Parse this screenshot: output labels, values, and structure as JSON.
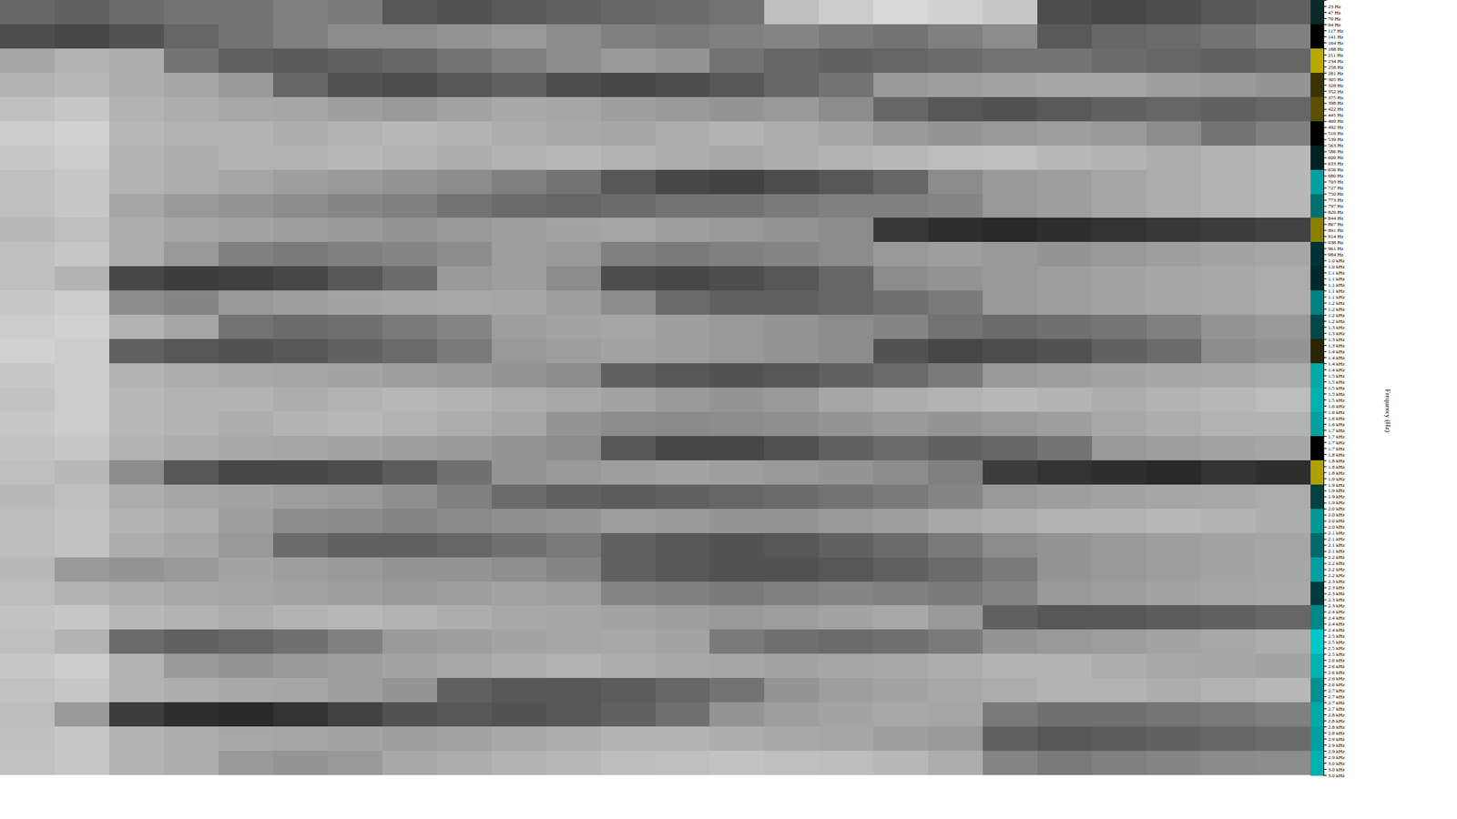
{
  "chart_data": {
    "type": "heatmap",
    "y_label": "Frequency (Hz)",
    "ylim": [
      0,
      3000
    ],
    "tick_labels": "y",
    "zlim": [
      0,
      100
    ],
    "yticks": [
      {
        "value": 23.4,
        "label": "23 Hz"
      },
      {
        "value": 46.9,
        "label": "47 Hz"
      },
      {
        "value": 70.3,
        "label": "70 Hz"
      },
      {
        "value": 93.8,
        "label": "94 Hz"
      },
      {
        "value": 117.2,
        "label": "117 Hz"
      },
      {
        "value": 140.6,
        "label": "141 Hz"
      },
      {
        "value": 164.1,
        "label": "164 Hz"
      },
      {
        "value": 187.5,
        "label": "188 Hz"
      },
      {
        "value": 210.9,
        "label": "211 Hz"
      },
      {
        "value": 234.4,
        "label": "234 Hz"
      },
      {
        "value": 257.8,
        "label": "258 Hz"
      },
      {
        "value": 281.3,
        "label": "281 Hz"
      },
      {
        "value": 304.7,
        "label": "305 Hz"
      },
      {
        "value": 328.1,
        "label": "328 Hz"
      },
      {
        "value": 351.6,
        "label": "352 Hz"
      },
      {
        "value": 375,
        "label": "375 Hz"
      },
      {
        "value": 398.4,
        "label": "398 Hz"
      },
      {
        "value": 421.9,
        "label": "422 Hz"
      },
      {
        "value": 445.3,
        "label": "445 Hz"
      },
      {
        "value": 468.8,
        "label": "469 Hz"
      },
      {
        "value": 492.2,
        "label": "492 Hz"
      },
      {
        "value": 515.6,
        "label": "516 Hz"
      },
      {
        "value": 539.1,
        "label": "539 Hz"
      },
      {
        "value": 562.5,
        "label": "563 Hz"
      },
      {
        "value": 585.9,
        "label": "586 Hz"
      },
      {
        "value": 609.4,
        "label": "609 Hz"
      },
      {
        "value": 632.8,
        "label": "633 Hz"
      },
      {
        "value": 656.3,
        "label": "656 Hz"
      },
      {
        "value": 679.7,
        "label": "680 Hz"
      },
      {
        "value": 703.1,
        "label": "703 Hz"
      },
      {
        "value": 726.6,
        "label": "727 Hz"
      },
      {
        "value": 750,
        "label": "750 Hz"
      },
      {
        "value": 773.4,
        "label": "773 Hz"
      },
      {
        "value": 796.9,
        "label": "797 Hz"
      },
      {
        "value": 820.3,
        "label": "820 Hz"
      },
      {
        "value": 843.8,
        "label": "844 Hz"
      },
      {
        "value": 867.2,
        "label": "867 Hz"
      },
      {
        "value": 890.6,
        "label": "891 Hz"
      },
      {
        "value": 914.1,
        "label": "914 Hz"
      },
      {
        "value": 937.5,
        "label": "938 Hz"
      },
      {
        "value": 960.9,
        "label": "961 Hz"
      },
      {
        "value": 984.4,
        "label": "984 Hz"
      },
      {
        "value": 1007.8,
        "label": "1.0 kHz"
      },
      {
        "value": 1031.3,
        "label": "1.0 kHz"
      },
      {
        "value": 1054.7,
        "label": "1.1 kHz"
      },
      {
        "value": 1078.1,
        "label": "1.1 kHz"
      },
      {
        "value": 1101.6,
        "label": "1.1 kHz"
      },
      {
        "value": 1125,
        "label": "1.1 kHz"
      },
      {
        "value": 1148.4,
        "label": "1.1 kHz"
      },
      {
        "value": 1171.9,
        "label": "1.2 kHz"
      },
      {
        "value": 1195.3,
        "label": "1.2 kHz"
      },
      {
        "value": 1218.8,
        "label": "1.2 kHz"
      },
      {
        "value": 1242.2,
        "label": "1.2 kHz"
      },
      {
        "value": 1265.6,
        "label": "1.3 kHz"
      },
      {
        "value": 1289.1,
        "label": "1.3 kHz"
      },
      {
        "value": 1312.5,
        "label": "1.3 kHz"
      },
      {
        "value": 1335.9,
        "label": "1.3 kHz"
      },
      {
        "value": 1359.4,
        "label": "1.4 kHz"
      },
      {
        "value": 1382.8,
        "label": "1.4 kHz"
      },
      {
        "value": 1406.3,
        "label": "1.4 kHz"
      },
      {
        "value": 1429.7,
        "label": "1.4 kHz"
      },
      {
        "value": 1453.1,
        "label": "1.5 kHz"
      },
      {
        "value": 1476.6,
        "label": "1.5 kHz"
      },
      {
        "value": 1500,
        "label": "1.5 kHz"
      },
      {
        "value": 1523.4,
        "label": "1.5 kHz"
      },
      {
        "value": 1546.9,
        "label": "1.5 kHz"
      },
      {
        "value": 1570.3,
        "label": "1.6 kHz"
      },
      {
        "value": 1593.8,
        "label": "1.6 kHz"
      },
      {
        "value": 1617.2,
        "label": "1.6 kHz"
      },
      {
        "value": 1640.6,
        "label": "1.6 kHz"
      },
      {
        "value": 1664.1,
        "label": "1.7 kHz"
      },
      {
        "value": 1687.5,
        "label": "1.7 kHz"
      },
      {
        "value": 1710.9,
        "label": "1.7 kHz"
      },
      {
        "value": 1734.4,
        "label": "1.7 kHz"
      },
      {
        "value": 1757.8,
        "label": "1.8 kHz"
      },
      {
        "value": 1781.3,
        "label": "1.8 kHz"
      },
      {
        "value": 1804.7,
        "label": "1.8 kHz"
      },
      {
        "value": 1828.1,
        "label": "1.8 kHz"
      },
      {
        "value": 1851.6,
        "label": "1.9 kHz"
      },
      {
        "value": 1875,
        "label": "1.9 kHz"
      },
      {
        "value": 1898.4,
        "label": "1.9 kHz"
      },
      {
        "value": 1921.9,
        "label": "1.9 kHz"
      },
      {
        "value": 1945.3,
        "label": "1.9 kHz"
      },
      {
        "value": 1968.8,
        "label": "2.0 kHz"
      },
      {
        "value": 1992.2,
        "label": "2.0 kHz"
      },
      {
        "value": 2015.6,
        "label": "2.0 kHz"
      },
      {
        "value": 2039.1,
        "label": "2.0 kHz"
      },
      {
        "value": 2062.5,
        "label": "2.1 kHz"
      },
      {
        "value": 2085.9,
        "label": "2.1 kHz"
      },
      {
        "value": 2109.4,
        "label": "2.1 kHz"
      },
      {
        "value": 2132.8,
        "label": "2.1 kHz"
      },
      {
        "value": 2156.3,
        "label": "2.2 kHz"
      },
      {
        "value": 2179.7,
        "label": "2.2 kHz"
      },
      {
        "value": 2203.1,
        "label": "2.2 kHz"
      },
      {
        "value": 2226.6,
        "label": "2.2 kHz"
      },
      {
        "value": 2250,
        "label": "2.3 kHz"
      },
      {
        "value": 2273.4,
        "label": "2.3 kHz"
      },
      {
        "value": 2296.9,
        "label": "2.3 kHz"
      },
      {
        "value": 2320.3,
        "label": "2.3 kHz"
      },
      {
        "value": 2343.8,
        "label": "2.3 kHz"
      },
      {
        "value": 2367.2,
        "label": "2.4 kHz"
      },
      {
        "value": 2390.6,
        "label": "2.4 kHz"
      },
      {
        "value": 2414.1,
        "label": "2.4 kHz"
      },
      {
        "value": 2437.5,
        "label": "2.4 kHz"
      },
      {
        "value": 2460.9,
        "label": "2.5 kHz"
      },
      {
        "value": 2484.4,
        "label": "2.5 kHz"
      },
      {
        "value": 2507.8,
        "label": "2.5 kHz"
      },
      {
        "value": 2531.3,
        "label": "2.5 kHz"
      },
      {
        "value": 2554.7,
        "label": "2.6 kHz"
      },
      {
        "value": 2578.1,
        "label": "2.6 kHz"
      },
      {
        "value": 2601.6,
        "label": "2.6 kHz"
      },
      {
        "value": 2625,
        "label": "2.6 kHz"
      },
      {
        "value": 2648.4,
        "label": "2.6 kHz"
      },
      {
        "value": 2671.9,
        "label": "2.7 kHz"
      },
      {
        "value": 2695.3,
        "label": "2.7 kHz"
      },
      {
        "value": 2718.8,
        "label": "2.7 kHz"
      },
      {
        "value": 2742.2,
        "label": "2.7 kHz"
      },
      {
        "value": 2765.6,
        "label": "2.8 kHz"
      },
      {
        "value": 2789.1,
        "label": "2.8 kHz"
      },
      {
        "value": 2812.5,
        "label": "2.8 kHz"
      },
      {
        "value": 2835.9,
        "label": "2.8 kHz"
      },
      {
        "value": 2859.4,
        "label": "2.9 kHz"
      },
      {
        "value": 2882.8,
        "label": "2.9 kHz"
      },
      {
        "value": 2906.3,
        "label": "2.9 kHz"
      },
      {
        "value": 2929.7,
        "label": "2.9 kHz"
      },
      {
        "value": 2953.1,
        "label": "3.0 kHz"
      },
      {
        "value": 2976.6,
        "label": "3.0 kHz"
      },
      {
        "value": 3000,
        "label": "3.0 kHz"
      }
    ],
    "cells": [
      [
        60,
        62,
        58,
        55,
        55,
        50,
        52,
        66,
        68,
        65,
        62,
        60,
        58,
        55,
        25,
        20,
        15,
        18,
        22,
        70,
        72,
        70,
        66,
        62
      ],
      [
        70,
        72,
        68,
        60,
        55,
        50,
        45,
        45,
        42,
        40,
        45,
        50,
        52,
        50,
        48,
        52,
        55,
        50,
        45,
        65,
        60,
        58,
        55,
        50
      ],
      [
        35,
        30,
        32,
        55,
        62,
        65,
        62,
        60,
        55,
        50,
        45,
        40,
        42,
        55,
        60,
        62,
        60,
        58,
        55,
        55,
        58,
        60,
        62,
        60
      ],
      [
        30,
        28,
        32,
        35,
        40,
        60,
        68,
        70,
        66,
        62,
        70,
        72,
        70,
        66,
        60,
        55,
        40,
        38,
        36,
        35,
        35,
        38,
        40,
        42
      ],
      [
        25,
        22,
        30,
        32,
        34,
        35,
        38,
        40,
        36,
        34,
        35,
        38,
        40,
        42,
        40,
        45,
        60,
        66,
        68,
        65,
        62,
        60,
        62,
        60
      ],
      [
        20,
        18,
        28,
        30,
        30,
        32,
        30,
        28,
        30,
        32,
        34,
        35,
        32,
        30,
        32,
        35,
        40,
        42,
        40,
        38,
        40,
        45,
        55,
        50
      ],
      [
        22,
        20,
        30,
        32,
        30,
        30,
        28,
        30,
        32,
        30,
        28,
        30,
        32,
        34,
        32,
        30,
        28,
        26,
        25,
        28,
        30,
        32,
        30,
        28
      ],
      [
        25,
        22,
        30,
        32,
        35,
        38,
        40,
        42,
        45,
        50,
        55,
        66,
        72,
        74,
        70,
        66,
        60,
        45,
        40,
        38,
        35,
        32,
        30,
        28
      ],
      [
        25,
        22,
        35,
        40,
        42,
        45,
        48,
        50,
        55,
        58,
        60,
        58,
        55,
        55,
        52,
        50,
        50,
        48,
        40,
        38,
        35,
        32,
        30,
        28
      ],
      [
        28,
        25,
        32,
        35,
        36,
        38,
        40,
        42,
        40,
        38,
        36,
        35,
        38,
        40,
        42,
        45,
        78,
        82,
        84,
        82,
        80,
        78,
        76,
        74
      ],
      [
        25,
        22,
        32,
        40,
        50,
        52,
        50,
        48,
        45,
        38,
        40,
        50,
        52,
        50,
        48,
        45,
        40,
        38,
        40,
        42,
        40,
        38,
        36,
        35
      ],
      [
        25,
        30,
        72,
        76,
        75,
        72,
        66,
        58,
        40,
        38,
        45,
        70,
        72,
        70,
        66,
        60,
        45,
        42,
        40,
        38,
        36,
        35,
        34,
        33
      ],
      [
        22,
        20,
        45,
        48,
        40,
        38,
        36,
        35,
        34,
        35,
        38,
        45,
        58,
        62,
        62,
        60,
        56,
        52,
        40,
        38,
        36,
        35,
        34,
        32
      ],
      [
        20,
        18,
        30,
        35,
        55,
        58,
        56,
        52,
        48,
        38,
        36,
        35,
        38,
        40,
        42,
        45,
        48,
        55,
        58,
        56,
        54,
        50,
        42,
        40
      ],
      [
        18,
        20,
        62,
        66,
        68,
        66,
        62,
        58,
        52,
        40,
        38,
        36,
        38,
        40,
        42,
        45,
        68,
        72,
        70,
        68,
        62,
        58,
        45,
        42
      ],
      [
        22,
        20,
        30,
        32,
        34,
        35,
        36,
        38,
        40,
        42,
        45,
        62,
        66,
        68,
        66,
        62,
        58,
        52,
        40,
        38,
        36,
        35,
        34,
        33
      ],
      [
        24,
        20,
        28,
        30,
        30,
        32,
        30,
        28,
        30,
        32,
        34,
        36,
        40,
        42,
        40,
        35,
        32,
        30,
        28,
        30,
        32,
        30,
        28,
        26
      ],
      [
        22,
        20,
        28,
        30,
        32,
        30,
        28,
        30,
        32,
        35,
        42,
        45,
        46,
        45,
        44,
        42,
        40,
        42,
        40,
        38,
        34,
        32,
        30,
        30
      ],
      [
        24,
        22,
        30,
        32,
        34,
        35,
        36,
        38,
        40,
        42,
        45,
        66,
        72,
        72,
        68,
        62,
        58,
        62,
        60,
        55,
        40,
        38,
        36,
        35
      ],
      [
        25,
        28,
        45,
        66,
        72,
        72,
        70,
        64,
        56,
        42,
        40,
        38,
        36,
        38,
        40,
        42,
        45,
        50,
        76,
        80,
        82,
        84,
        80,
        82
      ],
      [
        28,
        25,
        32,
        35,
        36,
        38,
        40,
        44,
        50,
        58,
        62,
        64,
        62,
        60,
        58,
        55,
        52,
        48,
        40,
        38,
        36,
        35,
        34,
        33
      ],
      [
        26,
        24,
        30,
        32,
        38,
        45,
        46,
        48,
        46,
        44,
        42,
        38,
        40,
        42,
        42,
        40,
        38,
        34,
        32,
        30,
        30,
        28,
        30,
        32
      ],
      [
        26,
        24,
        32,
        35,
        40,
        58,
        62,
        62,
        60,
        56,
        52,
        62,
        66,
        68,
        66,
        62,
        58,
        52,
        45,
        42,
        40,
        38,
        36,
        35
      ],
      [
        28,
        40,
        42,
        40,
        36,
        38,
        40,
        42,
        42,
        44,
        48,
        62,
        66,
        68,
        68,
        66,
        62,
        58,
        52,
        42,
        40,
        38,
        36,
        35
      ],
      [
        26,
        30,
        32,
        34,
        35,
        36,
        38,
        40,
        38,
        36,
        38,
        48,
        50,
        52,
        50,
        48,
        50,
        52,
        48,
        40,
        38,
        36,
        35,
        34
      ],
      [
        24,
        22,
        28,
        30,
        32,
        30,
        28,
        30,
        32,
        34,
        35,
        36,
        38,
        40,
        38,
        36,
        34,
        40,
        62,
        66,
        66,
        64,
        62,
        60
      ],
      [
        25,
        30,
        58,
        62,
        60,
        56,
        50,
        40,
        38,
        36,
        35,
        34,
        36,
        52,
        56,
        58,
        56,
        52,
        42,
        40,
        38,
        36,
        34,
        32
      ],
      [
        22,
        20,
        30,
        40,
        42,
        40,
        38,
        36,
        34,
        32,
        30,
        32,
        34,
        35,
        36,
        35,
        34,
        32,
        30,
        30,
        32,
        34,
        35,
        36
      ],
      [
        24,
        22,
        30,
        32,
        34,
        35,
        38,
        42,
        62,
        66,
        66,
        64,
        60,
        55,
        42,
        38,
        36,
        34,
        32,
        30,
        30,
        32,
        30,
        28
      ],
      [
        26,
        40,
        76,
        82,
        84,
        80,
        74,
        68,
        66,
        68,
        66,
        62,
        56,
        42,
        38,
        36,
        34,
        35,
        52,
        56,
        56,
        54,
        52,
        50
      ],
      [
        25,
        22,
        30,
        32,
        34,
        35,
        36,
        38,
        36,
        34,
        32,
        30,
        30,
        32,
        34,
        35,
        38,
        40,
        62,
        66,
        64,
        62,
        60,
        58
      ],
      [
        24,
        22,
        30,
        32,
        40,
        42,
        40,
        34,
        32,
        30,
        28,
        26,
        25,
        24,
        25,
        26,
        28,
        32,
        48,
        52,
        50,
        48,
        46,
        45
      ]
    ],
    "band_colors": [
      "#0a2a2a",
      "#000000",
      "#b8a800",
      "#3a3200",
      "#5a5000",
      "#000000",
      "#002222",
      "#00a0a0",
      "#007070",
      "#8a8000",
      "#003333",
      "#002a2a",
      "#008080",
      "#004848",
      "#2a2400",
      "#00a8a8",
      "#00b0b0",
      "#00a0a0",
      "#000000",
      "#b0a000",
      "#004040",
      "#009898",
      "#006a6a",
      "#00a0a0",
      "#003c3c",
      "#008888",
      "#00c8c8",
      "#00b0b0",
      "#009090",
      "#00a8a8",
      "#00a0a0",
      "#00b0b0"
    ]
  }
}
